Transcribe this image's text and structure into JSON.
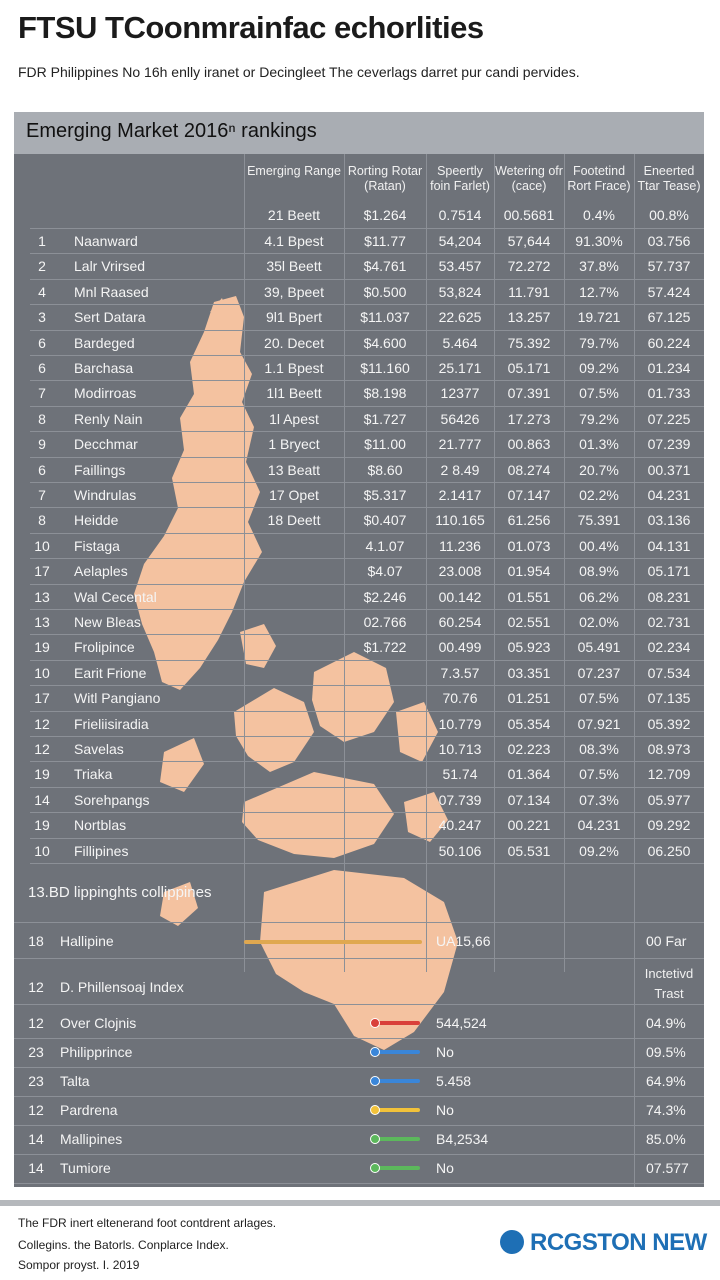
{
  "page": {
    "title": "FTSU TCoonmrainfac echorlities",
    "subtitle": "FDR Philippines No 16h enlly iranet or Decingleet The ceverlags darret pur candi pervides.",
    "footer_lines": [
      "The FDR inert eltenerand foot contdrent arlages.",
      "Collegins. the Batorls. Conplarce Index.",
      "Sompor proyst. I. 2019"
    ],
    "logo_text": "RCGSTON NEW",
    "logo_icon": "globe-icon"
  },
  "chart_data": {
    "type": "table",
    "title": "Emerging Market 2016ⁿ rankings",
    "columns": [
      "",
      "",
      "Emerging Range",
      "Rorting Rotar (Ratan)",
      "Speertly foin Farlet)",
      "Wetering ofr (cace)",
      "Footetind Rort Frace)",
      "Eneerted Ttar Tease)"
    ],
    "header_values": [
      "21 Beett",
      "$1.264",
      "0.7514",
      "00.5681",
      "0.4%",
      "00.8%"
    ],
    "rows": [
      [
        "1",
        "Naanward",
        "4.1 Bpest",
        "$11.77",
        "54,204",
        "57,644",
        "91.30%",
        "03.756"
      ],
      [
        "2",
        "Lalr Vrirsed",
        "35l Beett",
        "$4.761",
        "53.457",
        "72.272",
        "37.8%",
        "57.737"
      ],
      [
        "4",
        "Mnl Raased",
        "39, Bpeet",
        "$0.500",
        "53,824",
        "11.791",
        "12.7%",
        "57.424"
      ],
      [
        "3",
        "Sert Datara",
        "9l1 Bpert",
        "$11.037",
        "22.625",
        "13.257",
        "19.721",
        "67.125"
      ],
      [
        "6",
        "Bardeged",
        "20. Decet",
        "$4.600",
        "5.464",
        "75.392",
        "79.7%",
        "60.224"
      ],
      [
        "6",
        "Barchasa",
        "1.1 Bpest",
        "$11.160",
        "25.171",
        "05.171",
        "09.2%",
        "01.234"
      ],
      [
        "7",
        "Modirroas",
        "1l1 Beett",
        "$8.198",
        "12377",
        "07.391",
        "07.5%",
        "01.733"
      ],
      [
        "8",
        "Renly Nain",
        "1l Apest",
        "$1.727",
        "56426",
        "17.273",
        "79.2%",
        "07.225"
      ],
      [
        "9",
        "Decchmar",
        "1 Bryect",
        "$11.00",
        "21.777",
        "00.863",
        "01.3%",
        "07.239"
      ],
      [
        "6",
        "Faillings",
        "13 Beatt",
        "$8.60",
        "2 8.49",
        "08.274",
        "20.7%",
        "00.371"
      ],
      [
        "7",
        "Windrulas",
        "17 Opet",
        "$5.317",
        "2.1417",
        "07.147",
        "02.2%",
        "04.231"
      ],
      [
        "8",
        "Heidde",
        "18 Deett",
        "$0.407",
        "110.165",
        "61.256",
        "75.391",
        "03.136"
      ],
      [
        "10",
        "Fistaga",
        "",
        "4.1.07",
        "11.236",
        "01.073",
        "00.4%",
        "04.131"
      ],
      [
        "17",
        "Aelaples",
        "",
        "$4.07",
        "23.008",
        "01.954",
        "08.9%",
        "05.171"
      ],
      [
        "13",
        "Wal Cecental",
        "",
        "$2.246",
        "00.142",
        "01.551",
        "06.2%",
        "08.231"
      ],
      [
        "13",
        "New Bleas",
        "",
        "02.766",
        "60.254",
        "02.551",
        "02.0%",
        "02.731"
      ],
      [
        "19",
        "Frolipince",
        "",
        "$1.722",
        "00.499",
        "05.923",
        "05.491",
        "02.234"
      ],
      [
        "10",
        "Earit Frione",
        "",
        "",
        "7.3.57",
        "03.351",
        "07.237",
        "07.534"
      ],
      [
        "17",
        "Witl Pangiano",
        "",
        "",
        "70.76",
        "01.251",
        "07.5%",
        "07.135"
      ],
      [
        "12",
        "Frieliisiradia",
        "",
        "",
        "10.779",
        "05.354",
        "07.921",
        "05.392"
      ],
      [
        "12",
        "Savelas",
        "",
        "",
        "10.713",
        "02.223",
        "08.3%",
        "08.973"
      ],
      [
        "19",
        "Triaka",
        "",
        "",
        "51.74",
        "01.364",
        "07.5%",
        "12.709"
      ],
      [
        "14",
        "Sorehpangs",
        "",
        "",
        "07.739",
        "07.134",
        "07.3%",
        "05.977"
      ],
      [
        "19",
        "Nortblas",
        "",
        "",
        "40.247",
        "00.221",
        "04.231",
        "09.292"
      ],
      [
        "10",
        "Fillipines",
        "",
        "",
        "50.106",
        "05.531",
        "09.2%",
        "06.250"
      ]
    ],
    "section2": {
      "title": "13.BD lippinghts collippines",
      "row": {
        "rank": "18",
        "name": "Hallipine",
        "value": "UA15,66",
        "right": "00 Far",
        "bar_color": "#e0a850"
      }
    },
    "section3": {
      "rank": "12",
      "title": "D. Phillensoaj Index",
      "right_header": "Inctetivd Trast",
      "rows": [
        {
          "rank": "12",
          "name": "Over Clojnis",
          "value": "544,524",
          "pct": "04.9%",
          "color": "#d9403a"
        },
        {
          "rank": "23",
          "name": "Philipprince",
          "value": "No",
          "pct": "09.5%",
          "color": "#3a86d9"
        },
        {
          "rank": "23",
          "name": "Talta",
          "value": "5.458",
          "pct": "64.9%",
          "color": "#3a86d9"
        },
        {
          "rank": "12",
          "name": "Pardrena",
          "value": "No",
          "pct": "74.3%",
          "color": "#f2c23a"
        },
        {
          "rank": "14",
          "name": "Mallipines",
          "value": "B4,2534",
          "pct": "85.0%",
          "color": "#5cb85c"
        },
        {
          "rank": "14",
          "name": "Tumiore",
          "value": "No",
          "pct": "07.577",
          "color": "#5cb85c"
        }
      ]
    }
  }
}
